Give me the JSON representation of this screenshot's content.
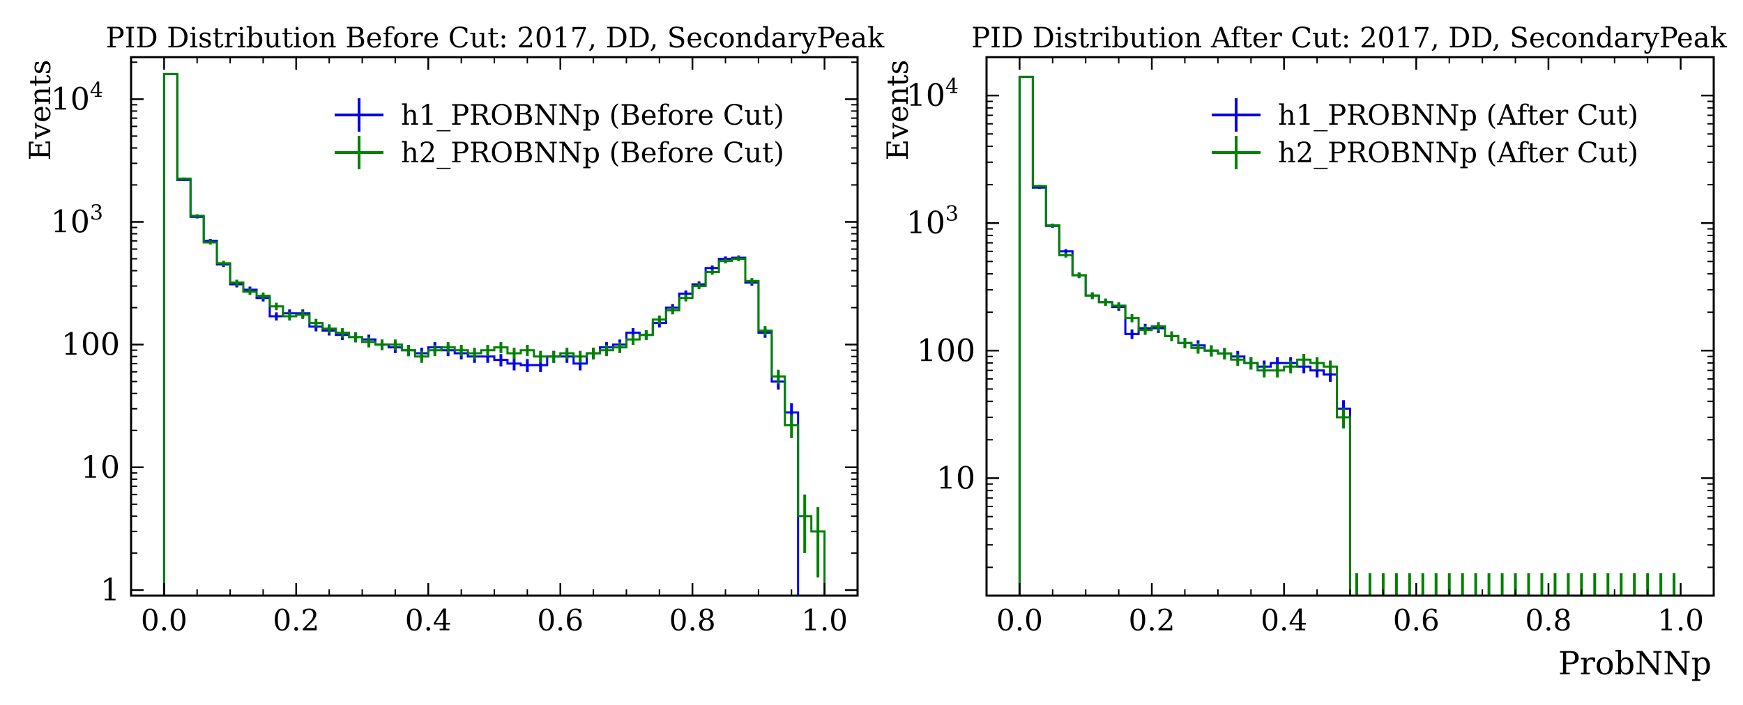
{
  "chart_data": [
    {
      "type": "histogram",
      "title": "PID Distribution Before Cut: 2017, DD, SecondaryPeak",
      "xlabel": "",
      "ylabel": "Events",
      "yscale": "log",
      "xlim": [
        -0.05,
        1.05
      ],
      "ylim": [
        0.9,
        22000
      ],
      "xticks": [
        "0.0",
        "0.2",
        "0.4",
        "0.6",
        "0.8",
        "1.0"
      ],
      "yticks": [
        "1",
        "10",
        "100",
        "10^3",
        "10^4"
      ],
      "legend_position": "top-right",
      "bin_edges_start": 0.0,
      "bin_width": 0.02,
      "series": [
        {
          "name": "h1_PROBNNp (Before Cut)",
          "color": "#0000ee",
          "values": [
            16000,
            2200,
            1100,
            700,
            450,
            310,
            280,
            240,
            170,
            180,
            180,
            140,
            130,
            120,
            115,
            110,
            100,
            95,
            90,
            85,
            95,
            90,
            85,
            80,
            80,
            75,
            70,
            68,
            68,
            80,
            80,
            70,
            85,
            95,
            100,
            125,
            120,
            150,
            200,
            260,
            310,
            420,
            500,
            510,
            320,
            125,
            50,
            28,
            0,
            0
          ]
        },
        {
          "name": "h2_PROBNNp (Before Cut)",
          "color": "#008000",
          "values": [
            16000,
            2250,
            1120,
            680,
            460,
            320,
            270,
            250,
            205,
            170,
            175,
            150,
            135,
            125,
            115,
            105,
            100,
            100,
            90,
            80,
            90,
            95,
            90,
            85,
            90,
            95,
            85,
            90,
            80,
            80,
            85,
            80,
            85,
            90,
            95,
            110,
            120,
            160,
            190,
            240,
            300,
            390,
            480,
            500,
            330,
            130,
            55,
            22,
            4,
            3
          ]
        }
      ]
    },
    {
      "type": "histogram",
      "title": "PID Distribution After Cut: 2017, DD, SecondaryPeak",
      "xlabel": "ProbNNp",
      "ylabel": "Events",
      "yscale": "log",
      "xlim": [
        -0.05,
        1.05
      ],
      "ylim": [
        1.2,
        20000
      ],
      "xticks": [
        "0.0",
        "0.2",
        "0.4",
        "0.6",
        "0.8",
        "1.0"
      ],
      "yticks": [
        "10",
        "100",
        "10^3",
        "10^4"
      ],
      "legend_position": "top-right",
      "bin_edges_start": 0.0,
      "bin_width": 0.02,
      "series": [
        {
          "name": "h1_PROBNNp (After Cut)",
          "color": "#0000ee",
          "values": [
            14000,
            1900,
            950,
            600,
            390,
            270,
            240,
            220,
            135,
            150,
            150,
            130,
            115,
            110,
            100,
            95,
            90,
            80,
            75,
            80,
            80,
            75,
            70,
            65,
            35
          ]
        },
        {
          "name": "h2_PROBNNp (After Cut)",
          "color": "#008000",
          "values": [
            14000,
            1950,
            960,
            560,
            390,
            270,
            240,
            225,
            180,
            145,
            155,
            130,
            115,
            105,
            100,
            95,
            85,
            80,
            70,
            70,
            75,
            85,
            80,
            75,
            30
          ]
        }
      ]
    }
  ]
}
